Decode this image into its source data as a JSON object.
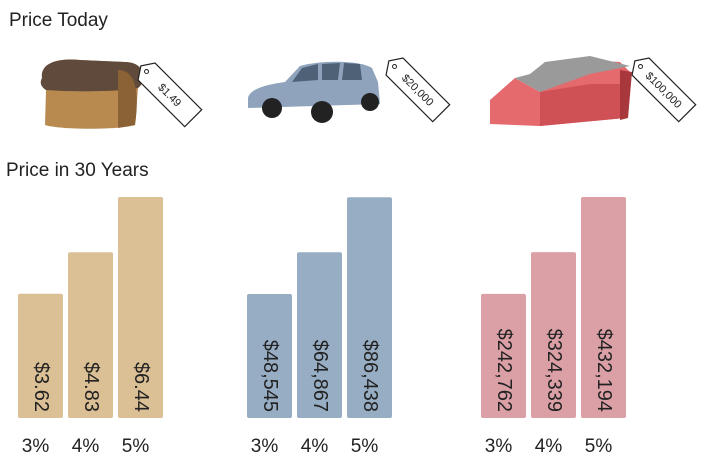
{
  "heading_today": "Price Today",
  "heading_future": "Price in 30 Years",
  "price_tags": [
    "$1.49",
    "$20,000",
    "$100,000"
  ],
  "chart_data": [
    {
      "type": "bar",
      "categories": [
        "3%",
        "4%",
        "5%"
      ],
      "values": [
        3.62,
        4.83,
        6.44
      ],
      "value_labels": [
        "$3.62",
        "$4.83",
        "$6.44"
      ],
      "color": "#dbbf95",
      "ylim": [
        0,
        6.5
      ]
    },
    {
      "type": "bar",
      "categories": [
        "3%",
        "4%",
        "5%"
      ],
      "values": [
        48545,
        64867,
        86438
      ],
      "value_labels": [
        "$48,545",
        "$64,867",
        "$86,438"
      ],
      "color": "#97adc3",
      "ylim": [
        0,
        87300
      ]
    },
    {
      "type": "bar",
      "categories": [
        "3%",
        "4%",
        "5%"
      ],
      "values": [
        242762,
        324339,
        432194
      ],
      "value_labels": [
        "$242,762",
        "$324,339",
        "$432,194"
      ],
      "color": "#dba0a6",
      "ylim": [
        0,
        436000
      ]
    }
  ]
}
